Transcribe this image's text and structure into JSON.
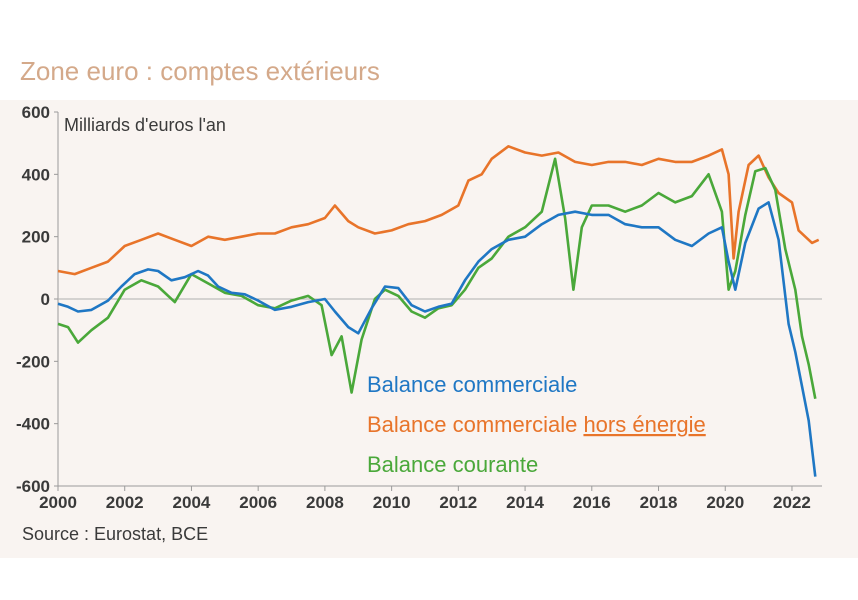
{
  "chart_data": {
    "type": "line",
    "title": "Zone euro : comptes extérieurs",
    "ylabel": "Milliards d'euros l'an",
    "source": "Source : Eurostat, BCE",
    "xlim": [
      2000,
      2022.9
    ],
    "ylim": [
      -600,
      600
    ],
    "x_ticks": [
      "2000",
      "2002",
      "2004",
      "2006",
      "2008",
      "2010",
      "2012",
      "2014",
      "2016",
      "2018",
      "2020",
      "2022"
    ],
    "y_ticks": [
      "600",
      "400",
      "200",
      "0",
      "-200",
      "-400",
      "-600"
    ],
    "legend": {
      "placement": "center",
      "items": [
        {
          "label": "Balance commerciale",
          "color": "#1f77c4"
        },
        {
          "label": "Balance commerciale",
          "label_underlined": "hors énergie",
          "color": "#e8742a"
        },
        {
          "label": "Balance courante",
          "color": "#4aa83a"
        }
      ]
    },
    "series": [
      {
        "name": "Balance commerciale",
        "color": "#1f77c4",
        "points": [
          [
            2000,
            -15
          ],
          [
            2000.3,
            -25
          ],
          [
            2000.6,
            -40
          ],
          [
            2001,
            -35
          ],
          [
            2001.5,
            -5
          ],
          [
            2001.9,
            40
          ],
          [
            2002.3,
            80
          ],
          [
            2002.7,
            95
          ],
          [
            2003,
            90
          ],
          [
            2003.4,
            60
          ],
          [
            2003.8,
            70
          ],
          [
            2004.2,
            90
          ],
          [
            2004.5,
            75
          ],
          [
            2004.8,
            40
          ],
          [
            2005.2,
            20
          ],
          [
            2005.6,
            15
          ],
          [
            2006,
            -5
          ],
          [
            2006.5,
            -35
          ],
          [
            2007,
            -25
          ],
          [
            2007.5,
            -10
          ],
          [
            2008,
            0
          ],
          [
            2008.3,
            -40
          ],
          [
            2008.7,
            -90
          ],
          [
            2009,
            -110
          ],
          [
            2009.4,
            -30
          ],
          [
            2009.8,
            40
          ],
          [
            2010.2,
            35
          ],
          [
            2010.6,
            -20
          ],
          [
            2011,
            -40
          ],
          [
            2011.4,
            -25
          ],
          [
            2011.8,
            -15
          ],
          [
            2012.2,
            60
          ],
          [
            2012.6,
            120
          ],
          [
            2013,
            160
          ],
          [
            2013.5,
            190
          ],
          [
            2014,
            200
          ],
          [
            2014.5,
            240
          ],
          [
            2015,
            270
          ],
          [
            2015.5,
            280
          ],
          [
            2016,
            270
          ],
          [
            2016.5,
            270
          ],
          [
            2017,
            240
          ],
          [
            2017.5,
            230
          ],
          [
            2018,
            230
          ],
          [
            2018.5,
            190
          ],
          [
            2019,
            170
          ],
          [
            2019.5,
            210
          ],
          [
            2019.9,
            230
          ],
          [
            2020.1,
            120
          ],
          [
            2020.3,
            30
          ],
          [
            2020.6,
            180
          ],
          [
            2021,
            290
          ],
          [
            2021.3,
            310
          ],
          [
            2021.6,
            190
          ],
          [
            2021.9,
            -80
          ],
          [
            2022.1,
            -170
          ],
          [
            2022.3,
            -280
          ],
          [
            2022.5,
            -390
          ],
          [
            2022.7,
            -570
          ]
        ]
      },
      {
        "name": "Balance commerciale hors énergie",
        "color": "#e8742a",
        "points": [
          [
            2000,
            90
          ],
          [
            2000.5,
            80
          ],
          [
            2001,
            100
          ],
          [
            2001.5,
            120
          ],
          [
            2002,
            170
          ],
          [
            2002.5,
            190
          ],
          [
            2003,
            210
          ],
          [
            2003.5,
            190
          ],
          [
            2004,
            170
          ],
          [
            2004.5,
            200
          ],
          [
            2005,
            190
          ],
          [
            2005.5,
            200
          ],
          [
            2006,
            210
          ],
          [
            2006.5,
            210
          ],
          [
            2007,
            230
          ],
          [
            2007.5,
            240
          ],
          [
            2008,
            260
          ],
          [
            2008.3,
            300
          ],
          [
            2008.7,
            250
          ],
          [
            2009,
            230
          ],
          [
            2009.5,
            210
          ],
          [
            2010,
            220
          ],
          [
            2010.5,
            240
          ],
          [
            2011,
            250
          ],
          [
            2011.5,
            270
          ],
          [
            2012,
            300
          ],
          [
            2012.3,
            380
          ],
          [
            2012.7,
            400
          ],
          [
            2013,
            450
          ],
          [
            2013.5,
            490
          ],
          [
            2014,
            470
          ],
          [
            2014.5,
            460
          ],
          [
            2015,
            470
          ],
          [
            2015.5,
            440
          ],
          [
            2016,
            430
          ],
          [
            2016.5,
            440
          ],
          [
            2017,
            440
          ],
          [
            2017.5,
            430
          ],
          [
            2018,
            450
          ],
          [
            2018.5,
            440
          ],
          [
            2019,
            440
          ],
          [
            2019.5,
            460
          ],
          [
            2019.9,
            480
          ],
          [
            2020.1,
            400
          ],
          [
            2020.25,
            130
          ],
          [
            2020.4,
            280
          ],
          [
            2020.7,
            430
          ],
          [
            2021,
            460
          ],
          [
            2021.3,
            390
          ],
          [
            2021.6,
            340
          ],
          [
            2022,
            310
          ],
          [
            2022.2,
            220
          ],
          [
            2022.4,
            200
          ],
          [
            2022.6,
            180
          ],
          [
            2022.8,
            190
          ]
        ]
      },
      {
        "name": "Balance courante",
        "color": "#4aa83a",
        "points": [
          [
            2000,
            -80
          ],
          [
            2000.3,
            -90
          ],
          [
            2000.6,
            -140
          ],
          [
            2001,
            -100
          ],
          [
            2001.5,
            -60
          ],
          [
            2002,
            30
          ],
          [
            2002.5,
            60
          ],
          [
            2003,
            40
          ],
          [
            2003.5,
            -10
          ],
          [
            2004,
            80
          ],
          [
            2004.5,
            50
          ],
          [
            2005,
            20
          ],
          [
            2005.5,
            10
          ],
          [
            2006,
            -20
          ],
          [
            2006.5,
            -30
          ],
          [
            2007,
            -5
          ],
          [
            2007.5,
            10
          ],
          [
            2007.9,
            -20
          ],
          [
            2008.2,
            -180
          ],
          [
            2008.5,
            -120
          ],
          [
            2008.8,
            -300
          ],
          [
            2009.1,
            -130
          ],
          [
            2009.5,
            0
          ],
          [
            2009.8,
            30
          ],
          [
            2010.2,
            10
          ],
          [
            2010.6,
            -40
          ],
          [
            2011,
            -60
          ],
          [
            2011.4,
            -30
          ],
          [
            2011.8,
            -20
          ],
          [
            2012.2,
            30
          ],
          [
            2012.6,
            100
          ],
          [
            2013,
            130
          ],
          [
            2013.5,
            200
          ],
          [
            2014,
            230
          ],
          [
            2014.5,
            280
          ],
          [
            2014.9,
            450
          ],
          [
            2015.2,
            260
          ],
          [
            2015.45,
            30
          ],
          [
            2015.7,
            230
          ],
          [
            2016,
            300
          ],
          [
            2016.5,
            300
          ],
          [
            2017,
            280
          ],
          [
            2017.5,
            300
          ],
          [
            2018,
            340
          ],
          [
            2018.5,
            310
          ],
          [
            2019,
            330
          ],
          [
            2019.5,
            400
          ],
          [
            2019.9,
            280
          ],
          [
            2020.1,
            30
          ],
          [
            2020.3,
            90
          ],
          [
            2020.6,
            270
          ],
          [
            2020.9,
            410
          ],
          [
            2021.2,
            420
          ],
          [
            2021.5,
            350
          ],
          [
            2021.8,
            160
          ],
          [
            2022.1,
            30
          ],
          [
            2022.3,
            -120
          ],
          [
            2022.5,
            -210
          ],
          [
            2022.7,
            -320
          ]
        ]
      }
    ]
  }
}
